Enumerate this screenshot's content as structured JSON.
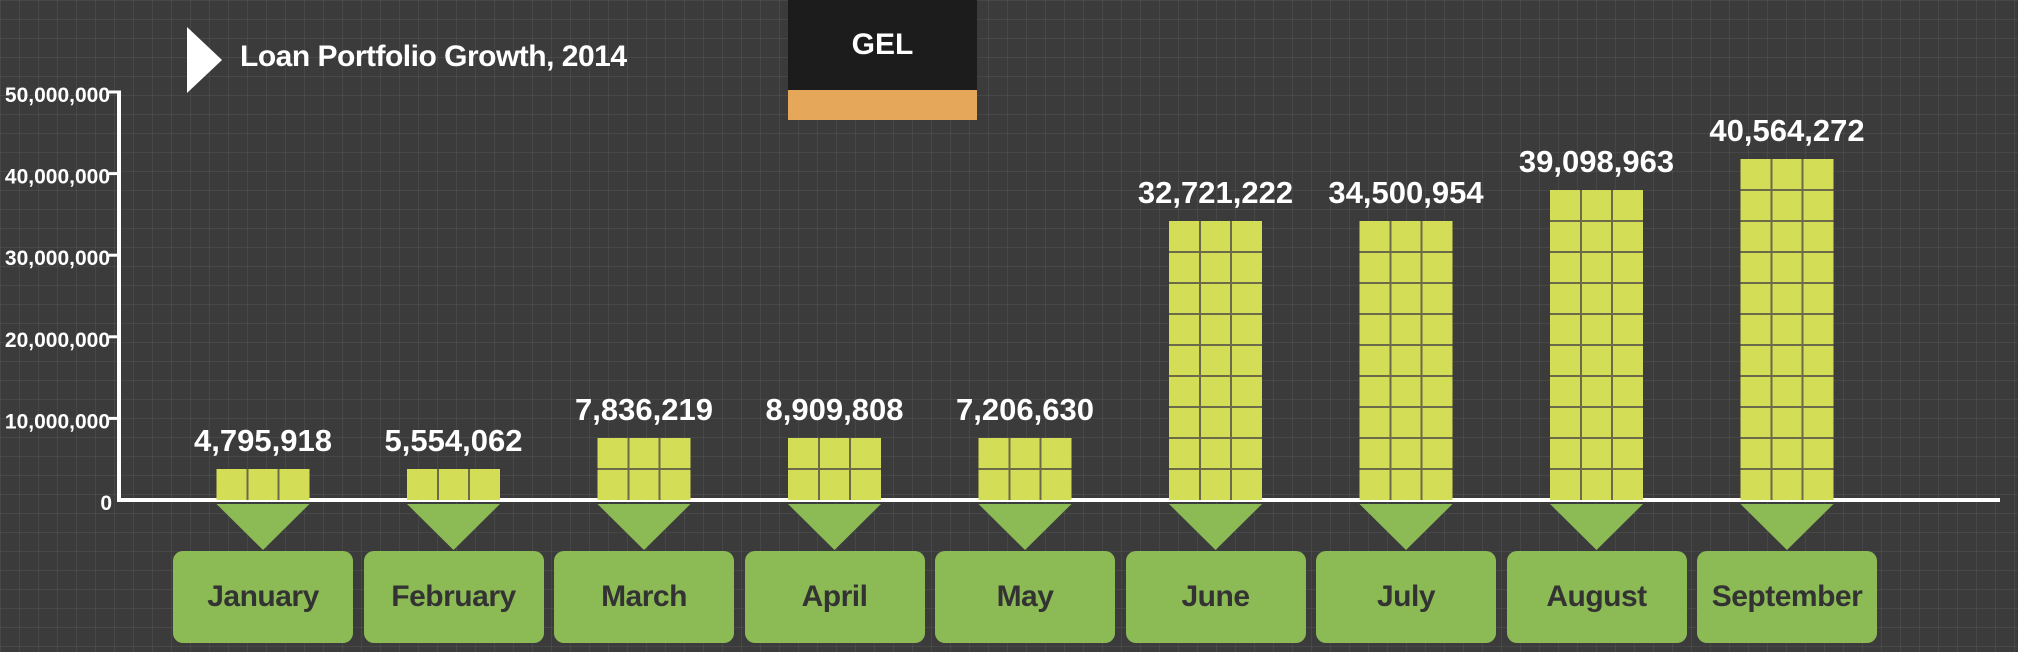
{
  "header": {
    "title": "Loan Portfolio Growth, 2014",
    "currency": "GEL"
  },
  "colors": {
    "bar": "#d4dd56",
    "bar_grid": "#6b6b4a",
    "pointer": "#8cba55",
    "month_box": "#8cba55",
    "accent": "#e5a75a",
    "background": "#3b3b3b"
  },
  "chart_data": {
    "type": "bar",
    "title": "Loan Portfolio Growth, 2014",
    "unit": "GEL",
    "categories": [
      "January",
      "February",
      "March",
      "April",
      "May",
      "June",
      "July",
      "August",
      "September"
    ],
    "values": [
      4795918,
      5554062,
      7836219,
      8909808,
      7206630,
      32721222,
      34500954,
      39098963,
      40564272
    ],
    "value_labels": [
      "4,795,918",
      "5,554,062",
      "7,836,219",
      "8,909,808",
      "7,206,630",
      "32,721,222",
      "34,500,954",
      "39,098,963",
      "40,564,272"
    ],
    "yticks": [
      0,
      10000000,
      20000000,
      30000000,
      40000000,
      50000000
    ],
    "ytick_labels": [
      "0",
      "10,000,000",
      "20,000,000",
      "30,000,000",
      "40,000,000",
      "50,000,000"
    ],
    "ylim": [
      0,
      50000000
    ],
    "xlabel": "",
    "ylabel": "",
    "grid": true
  }
}
